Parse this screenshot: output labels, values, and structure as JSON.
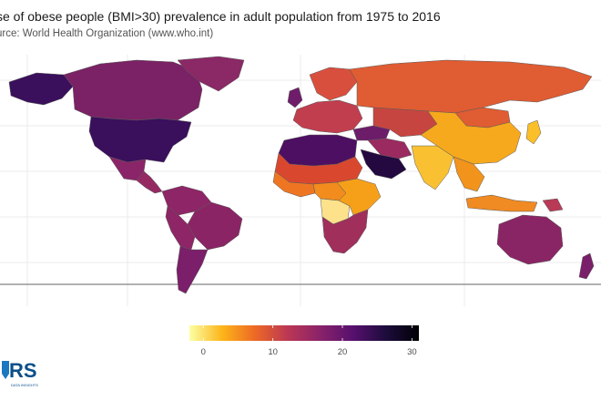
{
  "title": "se of obese people (BMI>30) prevalence in adult population from 1975 to 2016",
  "subtitle": "urce: World Health Organization (www.who.int)",
  "legend": {
    "ticks": [
      {
        "value": 0,
        "label": "0"
      },
      {
        "value": 10,
        "label": "10"
      },
      {
        "value": 20,
        "label": "20"
      },
      {
        "value": 30,
        "label": "30"
      }
    ],
    "range": [
      -2,
      31
    ],
    "colors": [
      "#fcffa4",
      "#fcb519",
      "#ed6925",
      "#bb3754",
      "#89226a",
      "#56106e",
      "#1d0c3c",
      "#000004"
    ]
  },
  "logo": {
    "text": "RS",
    "tagline": "DATA INSIGHTS",
    "color": "#0b4f8a"
  },
  "regions": [
    {
      "name": "north-america",
      "color": "#3a0f5c"
    },
    {
      "name": "canada",
      "color": "#7a2265"
    },
    {
      "name": "alaska",
      "color": "#3a0f5c"
    },
    {
      "name": "greenland",
      "color": "#8b2866"
    },
    {
      "name": "mexico",
      "color": "#8b2569"
    },
    {
      "name": "central-america",
      "color": "#952a63"
    },
    {
      "name": "south-america",
      "color": "#8e2566"
    },
    {
      "name": "brazil",
      "color": "#8a2464"
    },
    {
      "name": "argentina",
      "color": "#7b1f6a"
    },
    {
      "name": "europe",
      "color": "#c13e4f"
    },
    {
      "name": "scandinavia",
      "color": "#d94f3d"
    },
    {
      "name": "uk",
      "color": "#6f1d6a"
    },
    {
      "name": "russia",
      "color": "#e05c32"
    },
    {
      "name": "north-africa",
      "color": "#4d0f62"
    },
    {
      "name": "sahel",
      "color": "#d9482e"
    },
    {
      "name": "west-africa",
      "color": "#ee7623"
    },
    {
      "name": "central-africa",
      "color": "#f28c1d"
    },
    {
      "name": "drc",
      "color": "#fde28b"
    },
    {
      "name": "east-africa",
      "color": "#f6a01a"
    },
    {
      "name": "southern-africa",
      "color": "#a02f5c"
    },
    {
      "name": "middle-east",
      "color": "#9a2a60"
    },
    {
      "name": "arabia",
      "color": "#23093f"
    },
    {
      "name": "turkey",
      "color": "#6d1c6a"
    },
    {
      "name": "central-asia",
      "color": "#c74540"
    },
    {
      "name": "mongolia",
      "color": "#e05c32"
    },
    {
      "name": "china",
      "color": "#f6a91d"
    },
    {
      "name": "india",
      "color": "#f9c132"
    },
    {
      "name": "southeast-asia",
      "color": "#f2931c"
    },
    {
      "name": "indonesia",
      "color": "#f08a22"
    },
    {
      "name": "japan",
      "color": "#fbbf2a"
    },
    {
      "name": "australia",
      "color": "#8a2565"
    },
    {
      "name": "new-zealand",
      "color": "#7a1f6a"
    },
    {
      "name": "png",
      "color": "#b93a56"
    }
  ]
}
